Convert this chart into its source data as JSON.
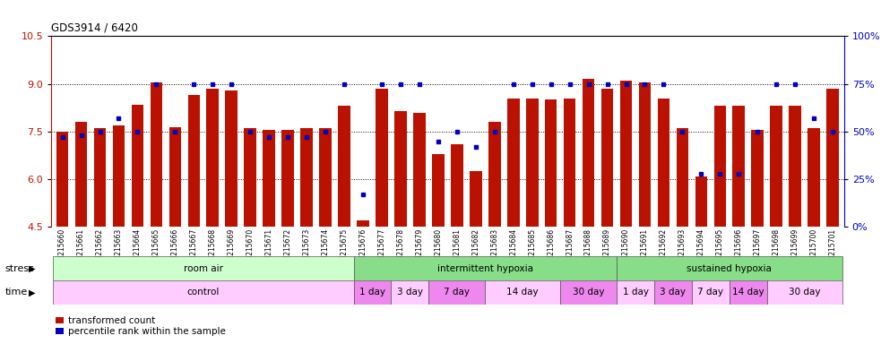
{
  "title": "GDS3914 / 6420",
  "samples": [
    "GSM215660",
    "GSM215661",
    "GSM215662",
    "GSM215663",
    "GSM215664",
    "GSM215665",
    "GSM215666",
    "GSM215667",
    "GSM215668",
    "GSM215669",
    "GSM215670",
    "GSM215671",
    "GSM215672",
    "GSM215673",
    "GSM215674",
    "GSM215675",
    "GSM215676",
    "GSM215677",
    "GSM215678",
    "GSM215679",
    "GSM215680",
    "GSM215681",
    "GSM215682",
    "GSM215683",
    "GSM215684",
    "GSM215685",
    "GSM215686",
    "GSM215687",
    "GSM215688",
    "GSM215689",
    "GSM215690",
    "GSM215691",
    "GSM215692",
    "GSM215693",
    "GSM215694",
    "GSM215695",
    "GSM215696",
    "GSM215697",
    "GSM215698",
    "GSM215699",
    "GSM215700",
    "GSM215701"
  ],
  "red_values": [
    7.5,
    7.8,
    7.6,
    7.7,
    8.35,
    9.05,
    7.65,
    8.65,
    8.85,
    8.8,
    7.6,
    7.55,
    7.55,
    7.6,
    7.6,
    8.3,
    4.7,
    8.85,
    8.15,
    8.1,
    6.8,
    7.1,
    6.25,
    7.8,
    8.55,
    8.55,
    8.5,
    8.55,
    9.15,
    8.85,
    9.1,
    9.05,
    8.55,
    7.6,
    6.1,
    8.3,
    8.3,
    7.55,
    8.3,
    8.3,
    7.6,
    8.85
  ],
  "blue_values": [
    47,
    48,
    50,
    57,
    50,
    75,
    50,
    75,
    75,
    75,
    50,
    47,
    47,
    47,
    50,
    75,
    17,
    75,
    75,
    75,
    45,
    50,
    42,
    50,
    75,
    75,
    75,
    75,
    75,
    75,
    75,
    75,
    75,
    50,
    28,
    28,
    28,
    50,
    75,
    75,
    57,
    50
  ],
  "ymin": 4.5,
  "ymax": 10.5,
  "yticks": [
    4.5,
    6.0,
    7.5,
    9.0,
    10.5
  ],
  "y2min": 0,
  "y2max": 100,
  "y2ticks": [
    0,
    25,
    50,
    75,
    100
  ],
  "bar_color": "#bb1100",
  "blue_color": "#0000bb",
  "bg_color": "#ffffff",
  "plot_bg": "#ffffff",
  "stress_groups": [
    {
      "label": "room air",
      "start": 0,
      "end": 16,
      "color": "#ccffcc"
    },
    {
      "label": "intermittent hypoxia",
      "start": 16,
      "end": 30,
      "color": "#88dd88"
    },
    {
      "label": "sustained hypoxia",
      "start": 30,
      "end": 42,
      "color": "#88dd88"
    }
  ],
  "time_groups": [
    {
      "label": "control",
      "start": 0,
      "end": 16,
      "color": "#ffccff"
    },
    {
      "label": "1 day",
      "start": 16,
      "end": 18,
      "color": "#ee88ee"
    },
    {
      "label": "3 day",
      "start": 18,
      "end": 20,
      "color": "#ffccff"
    },
    {
      "label": "7 day",
      "start": 20,
      "end": 23,
      "color": "#ee88ee"
    },
    {
      "label": "14 day",
      "start": 23,
      "end": 27,
      "color": "#ffccff"
    },
    {
      "label": "30 day",
      "start": 27,
      "end": 30,
      "color": "#ee88ee"
    },
    {
      "label": "1 day",
      "start": 30,
      "end": 32,
      "color": "#ffccff"
    },
    {
      "label": "3 day",
      "start": 32,
      "end": 34,
      "color": "#ee88ee"
    },
    {
      "label": "7 day",
      "start": 34,
      "end": 36,
      "color": "#ffccff"
    },
    {
      "label": "14 day",
      "start": 36,
      "end": 38,
      "color": "#ee88ee"
    },
    {
      "label": "30 day",
      "start": 38,
      "end": 42,
      "color": "#ffccff"
    }
  ],
  "legend_red": "transformed count",
  "legend_blue": "percentile rank within the sample",
  "stress_label": "stress",
  "time_label": "time"
}
